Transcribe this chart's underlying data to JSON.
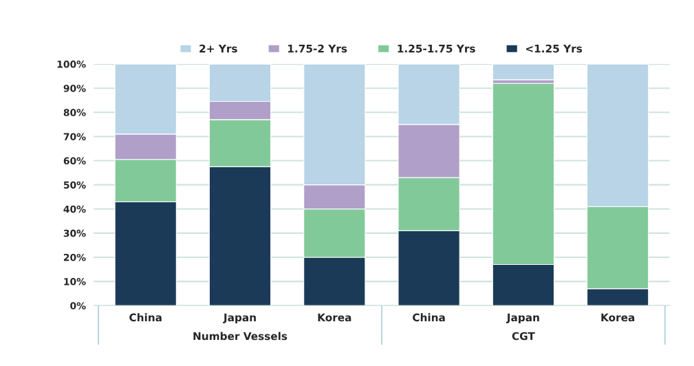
{
  "chart_data": {
    "type": "bar",
    "stacked": true,
    "categories": [
      "China",
      "Japan",
      "Korea",
      "China",
      "Japan",
      "Korea"
    ],
    "series": [
      {
        "name": "<1.25 Yrs",
        "color": "#1b3a57",
        "values": [
          43,
          57.5,
          20,
          31,
          17,
          7
        ]
      },
      {
        "name": "1.25-1.75 Yrs",
        "color": "#82c99a",
        "values": [
          17.5,
          19.5,
          20,
          22,
          75,
          34
        ]
      },
      {
        "name": "1.75-2 Yrs",
        "color": "#b09fc8",
        "values": [
          10.5,
          7.5,
          10,
          22,
          1.5,
          0
        ]
      },
      {
        "name": "2+ Yrs",
        "color": "#b8d4e6",
        "values": [
          29,
          15.5,
          50,
          25,
          6.5,
          59
        ]
      }
    ],
    "ylim": [
      0,
      100
    ],
    "yticks": [
      {
        "value": 0,
        "label": "0%"
      },
      {
        "value": 10,
        "label": "10%"
      },
      {
        "value": 20,
        "label": "20%"
      },
      {
        "value": 30,
        "label": "30%"
      },
      {
        "value": 40,
        "label": "40%"
      },
      {
        "value": 50,
        "label": "50%"
      },
      {
        "value": 60,
        "label": "60%"
      },
      {
        "value": 70,
        "label": "70%"
      },
      {
        "value": 80,
        "label": "80%"
      },
      {
        "value": 90,
        "label": "90%"
      },
      {
        "value": 100,
        "label": "100%"
      }
    ],
    "annotations": [
      "Number Vessels",
      "CGT"
    ],
    "grid": "y",
    "legend": "top"
  }
}
